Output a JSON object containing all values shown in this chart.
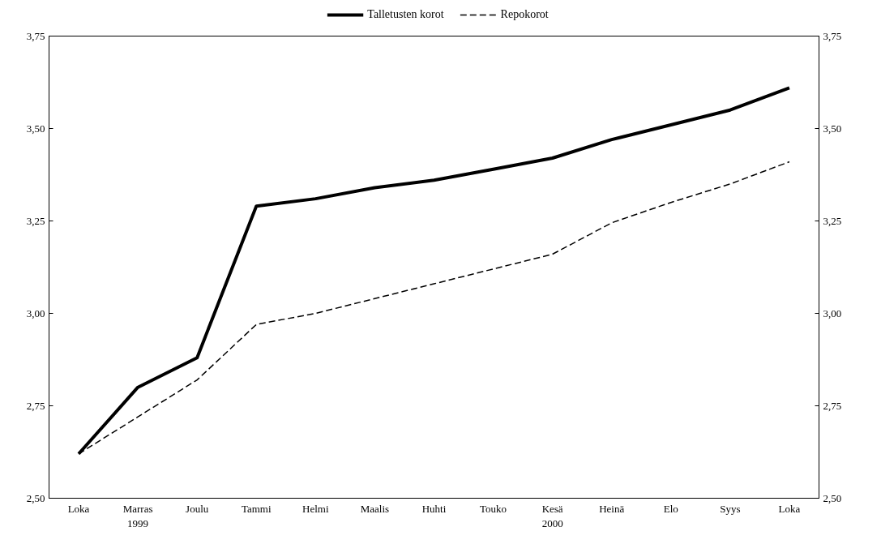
{
  "chart_data": {
    "type": "line",
    "categories": [
      "Loka",
      "Marras\n1999",
      "Joulu",
      "Tammi",
      "Helmi",
      "Maalis",
      "Huhti",
      "Touko",
      "Kesä\n2000",
      "Heinä",
      "Elo",
      "Syys",
      "Loka"
    ],
    "series": [
      {
        "name": "Talletusten korot",
        "color": "#000000",
        "line_style": "solid",
        "values": [
          2.62,
          2.8,
          2.88,
          3.29,
          3.31,
          3.34,
          3.36,
          3.39,
          3.42,
          3.47,
          3.51,
          3.55,
          3.61
        ]
      },
      {
        "name": "Repokorot",
        "color": "#000000",
        "line_style": "dashed",
        "values": [
          2.62,
          2.72,
          2.82,
          2.97,
          3.0,
          3.04,
          3.08,
          3.12,
          3.16,
          3.245,
          3.3,
          3.35,
          3.41
        ]
      }
    ],
    "ylim": [
      2.5,
      3.75
    ],
    "yticks": [
      {
        "value": 2.5,
        "label": "2,50"
      },
      {
        "value": 2.75,
        "label": "2,75"
      },
      {
        "value": 3.0,
        "label": "3,00"
      },
      {
        "value": 3.25,
        "label": "3,25"
      },
      {
        "value": 3.5,
        "label": "3,50"
      },
      {
        "value": 3.75,
        "label": "3,75"
      }
    ],
    "y2lim": [
      2.5,
      3.75
    ],
    "y2ticks": [
      {
        "value": 2.5,
        "label": "2,50"
      },
      {
        "value": 2.75,
        "label": "2,75"
      },
      {
        "value": 3.0,
        "label": "3,00"
      },
      {
        "value": 3.25,
        "label": "3,25"
      },
      {
        "value": 3.5,
        "label": "3,50"
      },
      {
        "value": 3.75,
        "label": "3,75"
      }
    ],
    "grid": false,
    "legend": "top",
    "marker": "none"
  }
}
